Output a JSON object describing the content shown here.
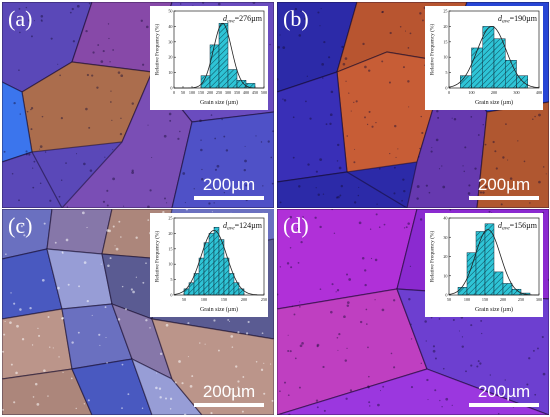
{
  "panels": [
    {
      "id": "a",
      "label": "(a)",
      "scale_text": "200µm",
      "colors": [
        "#5a48b8",
        "#8a4aa8",
        "#b07048",
        "#3a78f0",
        "#6b4dc0",
        "#7c4fb5",
        "#4f52c8"
      ]
    },
    {
      "id": "b",
      "label": "(b)",
      "scale_text": "200µm",
      "colors": [
        "#2c2aa8",
        "#c0582a",
        "#d06030",
        "#2848d8",
        "#6a3ab0",
        "#3a30b8",
        "#b85a2a"
      ]
    },
    {
      "id": "c",
      "label": "(c)",
      "scale_text": "200µm",
      "colors": [
        "#6a70c0",
        "#8878a8",
        "#b08878",
        "#4858c0",
        "#9aa0d8",
        "#5a5a90",
        "#c09888"
      ]
    },
    {
      "id": "d",
      "label": "(d)",
      "scale_text": "200µm",
      "colors": [
        "#b030d8",
        "#8a2ad0",
        "#c040c0",
        "#6a40d0",
        "#9a38e0",
        "#d04aa8",
        "#7a3ac8"
      ]
    }
  ],
  "chart_data": [
    {
      "type": "bar",
      "panel": "a",
      "annotation_symbol": "d",
      "annotation_sub": "ave",
      "annotation_value": "=276µm",
      "xlabel": "Grain size (µm)",
      "ylabel": "Relative Frequency (%)",
      "xlim": [
        0,
        500
      ],
      "ylim": [
        0,
        50
      ],
      "xticks": [
        0,
        50,
        100,
        150,
        200,
        250,
        300,
        350,
        400,
        450,
        500
      ],
      "yticks": [
        0,
        10,
        20,
        30,
        40,
        50
      ],
      "bin_edges": [
        150,
        200,
        250,
        300,
        350,
        400,
        450
      ],
      "values": [
        8,
        28,
        42,
        12,
        5,
        3
      ],
      "fit": {
        "mean": 270,
        "sd": 50,
        "peak": 42
      }
    },
    {
      "type": "bar",
      "panel": "b",
      "annotation_symbol": "d",
      "annotation_sub": "ave",
      "annotation_value": "=190µm",
      "xlabel": "Grain size (µm)",
      "ylabel": "Relative Frequency (%)",
      "xlim": [
        0,
        400
      ],
      "ylim": [
        0,
        25
      ],
      "xticks": [
        0,
        100,
        200,
        300,
        400
      ],
      "yticks": [
        0,
        5,
        10,
        15,
        20,
        25
      ],
      "bin_edges": [
        50,
        100,
        150,
        200,
        250,
        300,
        350
      ],
      "values": [
        4,
        13,
        20,
        16,
        9,
        4
      ],
      "fit": {
        "mean": 190,
        "sd": 65,
        "peak": 20
      }
    },
    {
      "type": "bar",
      "panel": "c",
      "annotation_symbol": "d",
      "annotation_sub": "ave",
      "annotation_value": "=124µm",
      "xlabel": "Grain size (µm)",
      "ylabel": "Relative Frequency (%)",
      "xlim": [
        25,
        250
      ],
      "ylim": [
        0,
        25
      ],
      "xticks": [
        50,
        100,
        150,
        200,
        250
      ],
      "yticks": [
        0,
        5,
        10,
        15,
        20,
        25
      ],
      "bin_edges": [
        50,
        62.5,
        75,
        87.5,
        100,
        112.5,
        125,
        137.5,
        150,
        162.5,
        175,
        187.5,
        200
      ],
      "values": [
        2,
        4,
        7,
        12,
        17,
        20,
        22,
        18,
        12,
        7,
        4,
        2
      ],
      "fit": {
        "mean": 125,
        "sd": 32,
        "peak": 21
      }
    },
    {
      "type": "bar",
      "panel": "d",
      "annotation_symbol": "d",
      "annotation_sub": "ave",
      "annotation_value": "=156µm",
      "xlabel": "Grain size (µm)",
      "ylabel": "Relative Frequency (%)",
      "xlim": [
        50,
        300
      ],
      "ylim": [
        0,
        40
      ],
      "xticks": [
        50,
        100,
        150,
        200,
        250,
        300
      ],
      "yticks": [
        0,
        10,
        20,
        30,
        40
      ],
      "bin_edges": [
        75,
        100,
        125,
        150,
        175,
        200,
        225,
        250,
        275
      ],
      "values": [
        4,
        22,
        33,
        37,
        12,
        6,
        3,
        1
      ],
      "fit": {
        "mean": 158,
        "sd": 35,
        "peak": 34
      }
    }
  ],
  "style": {
    "bar_fill": "#2ec4d6",
    "bar_hatch": "#0a3a48",
    "fit_color": "#222222",
    "axis_color": "#222222"
  }
}
